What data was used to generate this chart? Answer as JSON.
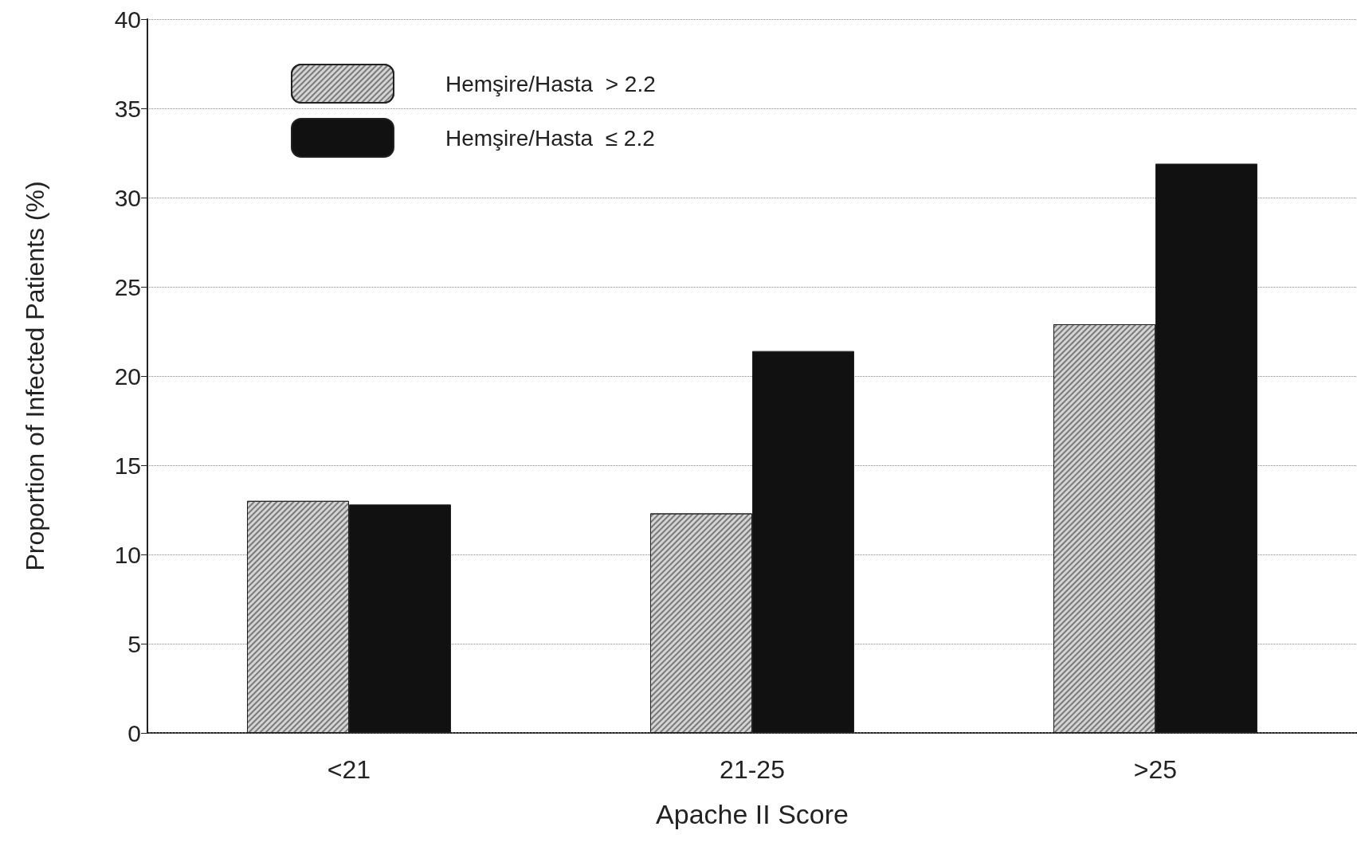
{
  "chart_data": {
    "type": "bar",
    "xlabel": "Apache II Score",
    "ylabel": "Proportion of Infected Patients (%)",
    "categories": [
      "<21",
      "21-25",
      ">25"
    ],
    "series": [
      {
        "name": "Hemşire/Hasta  > 2.2",
        "color": "#d4d4d4",
        "values": [
          13.0,
          12.3,
          22.9
        ]
      },
      {
        "name": "Hemşire/Hasta  ≤ 2.2",
        "color": "#111111",
        "values": [
          12.8,
          21.4,
          31.9
        ]
      }
    ],
    "ylim": [
      0,
      40
    ],
    "yticks": [
      0,
      5,
      10,
      15,
      20,
      25,
      30,
      35,
      40
    ],
    "grid": "y",
    "legend": "top left"
  }
}
